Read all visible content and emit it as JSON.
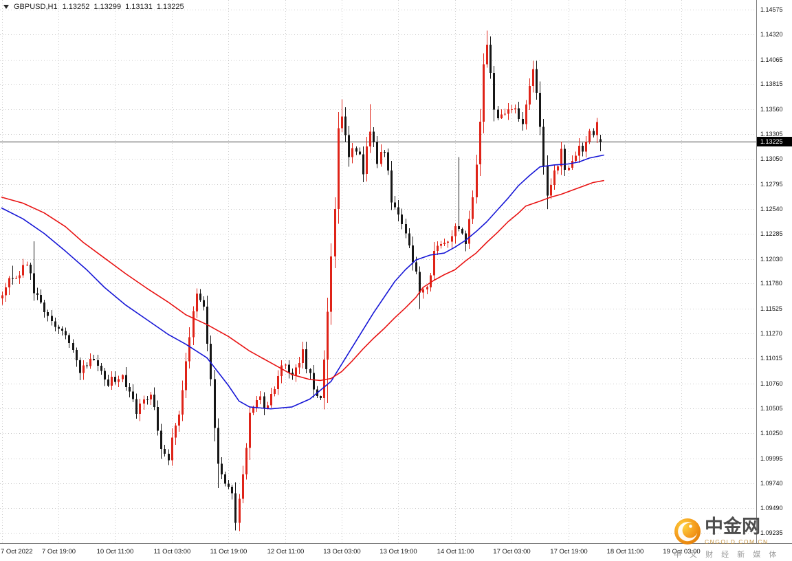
{
  "header": {
    "symbol": "GBPUSD,H1",
    "open": "1.13252",
    "high": "1.13299",
    "low": "1.13131",
    "close": "1.13225"
  },
  "watermark": {
    "brand": "中金网",
    "domain": "CNGOLD.COM.CN",
    "tagline": "中 文 财 经 新 媒 体"
  },
  "chart_data": {
    "type": "candlestick",
    "symbol": "GBPUSD",
    "timeframe": "H1",
    "title": "GBPUSD,H1 1.13252 1.13299 1.13131 1.13225",
    "last": {
      "open": 1.13252,
      "high": 1.13299,
      "low": 1.13131,
      "close": 1.13225
    },
    "price_line": 1.13225,
    "price_line_label": "1.13225",
    "ylim": [
      1.09235,
      1.14575
    ],
    "grid": "dotted",
    "y_axis_labels": [
      "1.14575",
      "1.14320",
      "1.14065",
      "1.13815",
      "1.13560",
      "1.13305",
      "1.13050",
      "1.12795",
      "1.12540",
      "1.12285",
      "1.12030",
      "1.11780",
      "1.11525",
      "1.11270",
      "1.11015",
      "1.10760",
      "1.10505",
      "1.10250",
      "1.09995",
      "1.09740",
      "1.09490",
      "1.09235"
    ],
    "x_axis_labels": [
      {
        "i": 0,
        "text": "7 Oct 2022"
      },
      {
        "i": 16,
        "text": "7 Oct 19:00"
      },
      {
        "i": 32,
        "text": "10 Oct 11:00"
      },
      {
        "i": 48,
        "text": "11 Oct 03:00"
      },
      {
        "i": 64,
        "text": "11 Oct 19:00"
      },
      {
        "i": 80,
        "text": "12 Oct 11:00"
      },
      {
        "i": 96,
        "text": "13 Oct 03:00"
      },
      {
        "i": 112,
        "text": "13 Oct 19:00"
      },
      {
        "i": 128,
        "text": "14 Oct 11:00"
      },
      {
        "i": 144,
        "text": "17 Oct 03:00"
      },
      {
        "i": 160,
        "text": "17 Oct 19:00"
      },
      {
        "i": 176,
        "text": "18 Oct 11:00"
      },
      {
        "i": 192,
        "text": "19 Oct 03:00"
      }
    ],
    "bars": {
      "count": 170,
      "seed": 7,
      "noise": 0.0011,
      "wick": 0.0006,
      "close_anchors": [
        [
          0,
          1.1165
        ],
        [
          3,
          1.1186
        ],
        [
          7,
          1.1196
        ],
        [
          9,
          1.1172
        ],
        [
          11,
          1.1155
        ],
        [
          15,
          1.1137
        ],
        [
          19,
          1.112
        ],
        [
          22,
          1.109
        ],
        [
          26,
          1.1103
        ],
        [
          30,
          1.1076
        ],
        [
          34,
          1.1086
        ],
        [
          38,
          1.1048
        ],
        [
          42,
          1.1065
        ],
        [
          45,
          1.1013
        ],
        [
          47,
          1.1001
        ],
        [
          50,
          1.1046
        ],
        [
          52,
          1.1101
        ],
        [
          55,
          1.1166
        ],
        [
          57,
          1.115
        ],
        [
          59,
          1.1076
        ],
        [
          61,
          1.0991
        ],
        [
          63,
          1.0977
        ],
        [
          65,
          1.0962
        ],
        [
          66,
          1.0938
        ],
        [
          68,
          1.0984
        ],
        [
          70,
          1.1046
        ],
        [
          72,
          1.1061
        ],
        [
          75,
          1.1051
        ],
        [
          78,
          1.1086
        ],
        [
          80,
          1.1095
        ],
        [
          82,
          1.1079
        ],
        [
          85,
          1.1106
        ],
        [
          88,
          1.1075
        ],
        [
          90,
          1.1061
        ],
        [
          92,
          1.1146
        ],
        [
          94,
          1.1258
        ],
        [
          95,
          1.1341
        ],
        [
          96,
          1.1352
        ],
        [
          98,
          1.1306
        ],
        [
          100,
          1.1317
        ],
        [
          102,
          1.1293
        ],
        [
          104,
          1.1338
        ],
        [
          106,
          1.1303
        ],
        [
          108,
          1.1313
        ],
        [
          110,
          1.1265
        ],
        [
          113,
          1.1237
        ],
        [
          116,
          1.1202
        ],
        [
          118,
          1.1167
        ],
        [
          120,
          1.1174
        ],
        [
          122,
          1.1209
        ],
        [
          124,
          1.1222
        ],
        [
          127,
          1.1226
        ],
        [
          129,
          1.1237
        ],
        [
          131,
          1.1219
        ],
        [
          133,
          1.1265
        ],
        [
          135,
          1.1342
        ],
        [
          136,
          1.1401
        ],
        [
          137,
          1.1426
        ],
        [
          138,
          1.1398
        ],
        [
          139,
          1.1356
        ],
        [
          141,
          1.1345
        ],
        [
          143,
          1.1359
        ],
        [
          145,
          1.1353
        ],
        [
          147,
          1.1342
        ],
        [
          148,
          1.1363
        ],
        [
          150,
          1.1395
        ],
        [
          152,
          1.1342
        ],
        [
          153,
          1.13
        ],
        [
          154,
          1.1265
        ],
        [
          156,
          1.1289
        ],
        [
          158,
          1.1317
        ],
        [
          159,
          1.1296
        ],
        [
          161,
          1.1307
        ],
        [
          163,
          1.1317
        ],
        [
          164,
          1.131
        ],
        [
          166,
          1.1331
        ],
        [
          168,
          1.1338
        ],
        [
          169,
          1.13225
        ]
      ],
      "forced_wicks": [
        {
          "i": 3,
          "h": 1.1196
        },
        {
          "i": 9,
          "h": 1.1221
        },
        {
          "i": 45,
          "l": 1.0999
        },
        {
          "i": 55,
          "h": 1.1173
        },
        {
          "i": 61,
          "l": 1.0969
        },
        {
          "i": 66,
          "l": 1.0926
        },
        {
          "i": 92,
          "l": 1.1056
        },
        {
          "i": 96,
          "h": 1.1366
        },
        {
          "i": 104,
          "h": 1.1361
        },
        {
          "i": 118,
          "l": 1.1152
        },
        {
          "i": 129,
          "h": 1.1307
        },
        {
          "i": 137,
          "h": 1.1436
        },
        {
          "i": 150,
          "h": 1.1404
        },
        {
          "i": 154,
          "l": 1.1254
        }
      ]
    },
    "series": [
      {
        "name": "ma_blue",
        "color": "#1616d6",
        "points": [
          [
            0,
            1.1255
          ],
          [
            6,
            1.1244
          ],
          [
            12,
            1.1229
          ],
          [
            18,
            1.1211
          ],
          [
            24,
            1.1192
          ],
          [
            29,
            1.1174
          ],
          [
            35,
            1.1156
          ],
          [
            41,
            1.1141
          ],
          [
            47,
            1.1126
          ],
          [
            52,
            1.1116
          ],
          [
            58,
            1.1102
          ],
          [
            64,
            1.1074
          ],
          [
            67,
            1.1058
          ],
          [
            70,
            1.1052
          ],
          [
            76,
            1.105
          ],
          [
            82,
            1.1052
          ],
          [
            87,
            1.106
          ],
          [
            93,
            1.1078
          ],
          [
            99,
            1.1113
          ],
          [
            105,
            1.1148
          ],
          [
            111,
            1.118
          ],
          [
            114,
            1.1192
          ],
          [
            117,
            1.1202
          ],
          [
            121,
            1.1207
          ],
          [
            125,
            1.1209
          ],
          [
            128,
            1.1215
          ],
          [
            131,
            1.1222
          ],
          [
            134,
            1.1231
          ],
          [
            137,
            1.1241
          ],
          [
            140,
            1.1253
          ],
          [
            143,
            1.1265
          ],
          [
            146,
            1.1278
          ],
          [
            149,
            1.1288
          ],
          [
            152,
            1.1297
          ],
          [
            156,
            1.1299
          ],
          [
            160,
            1.13
          ],
          [
            163,
            1.1302
          ],
          [
            166,
            1.1306
          ],
          [
            170,
            1.1309
          ]
        ]
      },
      {
        "name": "ma_red",
        "color": "#e81212",
        "points": [
          [
            0,
            1.1266
          ],
          [
            6,
            1.126
          ],
          [
            12,
            1.125
          ],
          [
            18,
            1.1236
          ],
          [
            23,
            1.122
          ],
          [
            29,
            1.1204
          ],
          [
            35,
            1.1188
          ],
          [
            41,
            1.1173
          ],
          [
            47,
            1.1159
          ],
          [
            52,
            1.1146
          ],
          [
            58,
            1.1136
          ],
          [
            64,
            1.1124
          ],
          [
            70,
            1.1109
          ],
          [
            76,
            1.1097
          ],
          [
            82,
            1.1085
          ],
          [
            87,
            1.108
          ],
          [
            90,
            1.1079
          ],
          [
            93,
            1.1081
          ],
          [
            96,
            1.1088
          ],
          [
            99,
            1.1099
          ],
          [
            102,
            1.1111
          ],
          [
            105,
            1.1122
          ],
          [
            108,
            1.1132
          ],
          [
            111,
            1.1143
          ],
          [
            114,
            1.1153
          ],
          [
            117,
            1.1164
          ],
          [
            119,
            1.1174
          ],
          [
            122,
            1.1181
          ],
          [
            125,
            1.1187
          ],
          [
            128,
            1.1192
          ],
          [
            131,
            1.1201
          ],
          [
            134,
            1.1209
          ],
          [
            137,
            1.122
          ],
          [
            140,
            1.123
          ],
          [
            143,
            1.1241
          ],
          [
            146,
            1.125
          ],
          [
            148,
            1.1257
          ],
          [
            152,
            1.1262
          ],
          [
            155,
            1.1266
          ],
          [
            158,
            1.1269
          ],
          [
            161,
            1.1273
          ],
          [
            164,
            1.1277
          ],
          [
            167,
            1.1281
          ],
          [
            170,
            1.1283
          ]
        ]
      }
    ],
    "colors": {
      "up": "#df2318",
      "down": "#161616",
      "grid": "#c9c9c9",
      "price_line": "#3c3c3c",
      "axis_text": "#141414",
      "badge_bg": "#000000",
      "badge_text": "#ffffff"
    }
  }
}
